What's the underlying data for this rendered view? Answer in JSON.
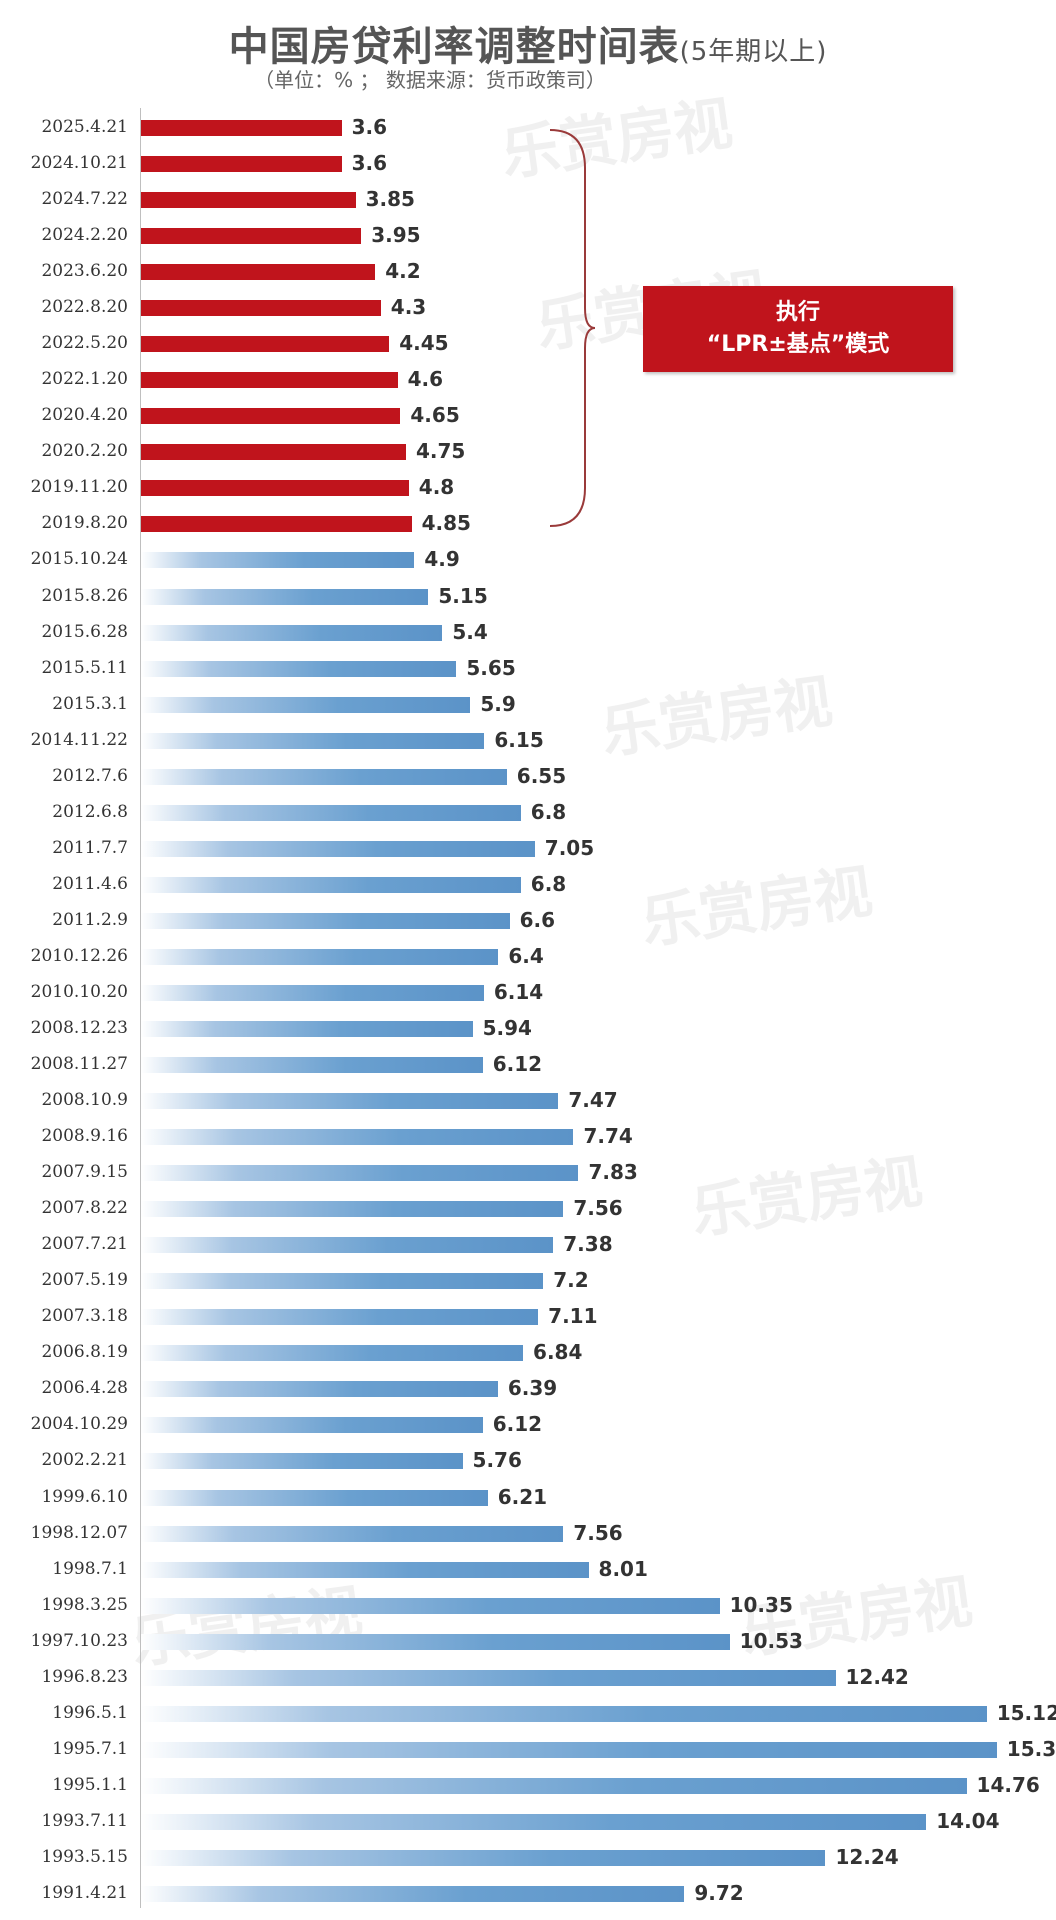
{
  "title": "中国房贷利率调整时间表",
  "title_suffix": "(5年期以上)",
  "subtitle": "（单位：% ；   数据来源：货币政策司）",
  "annotation": {
    "line1": "执行",
    "line2": "“LPR±基点”模式"
  },
  "watermark": "乐赏房视",
  "colors": {
    "lpr": "#c0141c",
    "pre_lpr": "#5b93c8"
  },
  "chart_data": {
    "type": "bar",
    "orientation": "horizontal",
    "title": "中国房贷利率调整时间表(5年期以上)",
    "unit": "%",
    "lpr_group_count": 12,
    "categories": [
      "2025.4.21",
      "2024.10.21",
      "2024.7.22",
      "2024.2.20",
      "2023.6.20",
      "2022.8.20",
      "2022.5.20",
      "2022.1.20",
      "2020.4.20",
      "2020.2.20",
      "2019.11.20",
      "2019.8.20",
      "2015.10.24",
      "2015.8.26",
      "2015.6.28",
      "2015.5.11",
      "2015.3.1",
      "2014.11.22",
      "2012.7.6",
      "2012.6.8",
      "2011.7.7",
      "2011.4.6",
      "2011.2.9",
      "2010.12.26",
      "2010.10.20",
      "2008.12.23",
      "2008.11.27",
      "2008.10.9",
      "2008.9.16",
      "2007.9.15",
      "2007.8.22",
      "2007.7.21",
      "2007.5.19",
      "2007.3.18",
      "2006.8.19",
      "2006.4.28",
      "2004.10.29",
      "2002.2.21",
      "1999.6.10",
      "1998.12.07",
      "1998.7.1",
      "1998.3.25",
      "1997.10.23",
      "1996.8.23",
      "1996.5.1",
      "1995.7.1",
      "1995.1.1",
      "1993.7.11",
      "1993.5.15",
      "1991.4.21"
    ],
    "values": [
      3.6,
      3.6,
      3.85,
      3.95,
      4.2,
      4.3,
      4.45,
      4.6,
      4.65,
      4.75,
      4.8,
      4.85,
      4.9,
      5.15,
      5.4,
      5.65,
      5.9,
      6.15,
      6.55,
      6.8,
      7.05,
      6.8,
      6.6,
      6.4,
      6.14,
      5.94,
      6.12,
      7.47,
      7.74,
      7.83,
      7.56,
      7.38,
      7.2,
      7.11,
      6.84,
      6.39,
      6.12,
      5.76,
      6.21,
      7.56,
      8.01,
      10.35,
      10.53,
      12.42,
      15.12,
      15.3,
      14.76,
      14.04,
      12.24,
      9.72
    ],
    "value_labels": [
      "3.6",
      "3.6",
      "3.85",
      "3.95",
      "4.2",
      "4.3",
      "4.45",
      "4.6",
      "4.65",
      "4.75",
      "4.8",
      "4.85",
      "4.9",
      "5.15",
      "5.4",
      "5.65",
      "5.9",
      "6.15",
      "6.55",
      "6.8",
      "7.05",
      "6.8",
      "6.6",
      "6.4",
      "6.14",
      "5.94",
      "6.12",
      "7.47",
      "7.74",
      "7.83",
      "7.56",
      "7.38",
      "7.2",
      "7.11",
      "6.84",
      "6.39",
      "6.12",
      "5.76",
      "6.21",
      "7.56",
      "8.01",
      "10.35",
      "10.53",
      "12.42",
      "15.12",
      "15.3",
      "14.76",
      "14.04",
      "12.24",
      "9.72"
    ],
    "xlim": [
      0,
      16
    ],
    "grid": false,
    "legend": "none"
  }
}
